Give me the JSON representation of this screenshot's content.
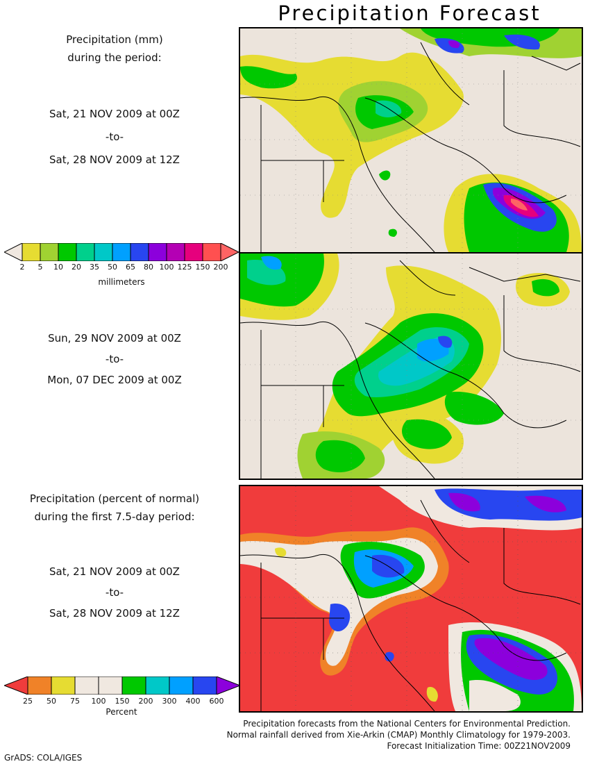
{
  "title": "Precipitation Forecast",
  "panel1": {
    "heading1": "Precipitation (mm)",
    "heading2": "during the period:",
    "start": "Sat, 21 NOV 2009 at 00Z",
    "to": "-to-",
    "end": "Sat, 28 NOV 2009 at 12Z"
  },
  "colorbar_mm": {
    "labels": [
      "2",
      "5",
      "10",
      "20",
      "35",
      "50",
      "65",
      "80",
      "100",
      "125",
      "150",
      "200"
    ],
    "colors": [
      "#f0e8e0",
      "#e6dc32",
      "#a0d232",
      "#00c800",
      "#00d08c",
      "#00c8c8",
      "#00a0ff",
      "#2846f0",
      "#8c00dc",
      "#b400b4",
      "#e6007d",
      "#ff5050",
      "#ff6464"
    ],
    "unit": "millimeters"
  },
  "panel2": {
    "start": "Sun, 29 NOV 2009 at 00Z",
    "to": "-to-",
    "end": "Mon, 07 DEC 2009 at 00Z"
  },
  "panel3": {
    "heading1": "Precipitation (percent of normal)",
    "heading2": "during the first 7.5-day period:",
    "start": "Sat, 21 NOV 2009 at 00Z",
    "to": "-to-",
    "end": "Sat, 28 NOV 2009 at 12Z"
  },
  "colorbar_pct": {
    "labels": [
      "25",
      "50",
      "75",
      "100",
      "150",
      "200",
      "300",
      "400",
      "600"
    ],
    "colors": [
      "#f03c3c",
      "#f08228",
      "#e6dc32",
      "#f0e8e0",
      "#f0e8e0",
      "#00c800",
      "#00c8c8",
      "#00a0ff",
      "#2846f0",
      "#8c00dc"
    ],
    "unit": "Percent"
  },
  "footer": {
    "line1": "Precipitation forecasts from the National Centers for Environmental Prediction.",
    "line2": "Normal rainfall derived from Xie-Arkin (CMAP) Monthly Climatology for 1979-2003.",
    "line3": "Forecast Initialization Time: 00Z21NOV2009"
  },
  "credit": "GrADS: COLA/IGES"
}
